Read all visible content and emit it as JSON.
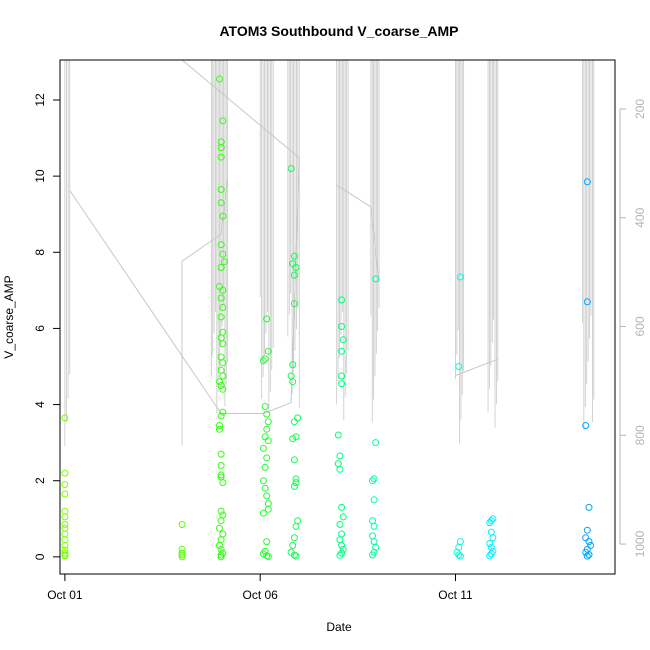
{
  "chart_data": {
    "type": "scatter",
    "title": "ATOM3 Southbound V_coarse_AMP",
    "xlabel": "Date",
    "ylabel": "V_coarse_AMP",
    "xlim": [
      "2023-09-30T21:00",
      "2023-10-15T02:00"
    ],
    "ylim": [
      -0.45,
      13.05
    ],
    "x_ticks": [
      {
        "x": "2023-10-01T00:00",
        "label": "Oct 01"
      },
      {
        "x": "2023-10-06T00:00",
        "label": "Oct 06"
      },
      {
        "x": "2023-10-11T00:00",
        "label": "Oct 11"
      }
    ],
    "y_ticks": [
      0,
      2,
      4,
      6,
      8,
      10,
      12
    ],
    "y2_ticks": [
      200,
      400,
      600,
      800,
      1000
    ],
    "y2lim": [
      1055,
      110
    ],
    "y2_color": "#b4b4b4",
    "grid": false,
    "legend": "none",
    "series": [
      {
        "color": "#7cff00",
        "points": [
          [
            "2023-10-01T00:00",
            3.65
          ],
          [
            "2023-10-01T00:00",
            2.2
          ],
          [
            "2023-10-01T00:00",
            1.9
          ],
          [
            "2023-10-01T00:00",
            1.65
          ],
          [
            "2023-10-01T00:00",
            1.2
          ],
          [
            "2023-10-01T00:00",
            1.05
          ],
          [
            "2023-10-01T00:00",
            0.85
          ],
          [
            "2023-10-01T00:00",
            0.75
          ],
          [
            "2023-10-01T00:00",
            0.6
          ],
          [
            "2023-10-01T00:00",
            0.45
          ],
          [
            "2023-10-01T00:00",
            0.3
          ],
          [
            "2023-10-01T00:00",
            0.18
          ],
          [
            "2023-10-01T00:00",
            0.1
          ],
          [
            "2023-10-01T00:00",
            0.05
          ],
          [
            "2023-10-01T00:00",
            0.02
          ]
        ]
      },
      {
        "color": "#5cff00",
        "points": [
          [
            "2023-10-04T00:00",
            0.85
          ],
          [
            "2023-10-04T00:00",
            0.2
          ],
          [
            "2023-10-04T00:00",
            0.1
          ],
          [
            "2023-10-04T00:00",
            0.05
          ],
          [
            "2023-10-04T00:00",
            0.0
          ]
        ]
      },
      {
        "color": "#33ff10",
        "points": [
          [
            "2023-10-04T23:00",
            12.55
          ],
          [
            "2023-10-05T01:00",
            11.45
          ],
          [
            "2023-10-05T00:00",
            10.9
          ],
          [
            "2023-10-05T00:00",
            10.75
          ],
          [
            "2023-10-05T00:00",
            10.5
          ],
          [
            "2023-10-05T00:00",
            9.65
          ],
          [
            "2023-10-05T00:00",
            9.3
          ],
          [
            "2023-10-05T01:00",
            8.95
          ],
          [
            "2023-10-05T00:00",
            8.2
          ],
          [
            "2023-10-05T01:00",
            7.95
          ],
          [
            "2023-10-05T02:00",
            7.75
          ],
          [
            "2023-10-05T00:00",
            7.6
          ],
          [
            "2023-10-04T23:00",
            7.1
          ],
          [
            "2023-10-05T01:00",
            7.0
          ],
          [
            "2023-10-05T00:00",
            6.8
          ],
          [
            "2023-10-05T01:00",
            6.55
          ],
          [
            "2023-10-05T00:00",
            6.3
          ],
          [
            "2023-10-05T01:00",
            5.9
          ],
          [
            "2023-10-05T00:00",
            5.75
          ],
          [
            "2023-10-05T01:00",
            5.6
          ],
          [
            "2023-10-05T00:00",
            5.25
          ],
          [
            "2023-10-05T01:00",
            5.1
          ],
          [
            "2023-10-05T00:00",
            4.9
          ],
          [
            "2023-10-05T01:00",
            4.75
          ],
          [
            "2023-10-04T23:00",
            4.6
          ],
          [
            "2023-10-05T00:00",
            4.5
          ],
          [
            "2023-10-05T01:00",
            4.4
          ],
          [
            "2023-10-05T01:00",
            3.8
          ],
          [
            "2023-10-05T00:00",
            3.7
          ],
          [
            "2023-10-04T23:00",
            3.45
          ],
          [
            "2023-10-04T23:00",
            3.35
          ],
          [
            "2023-10-05T00:00",
            2.7
          ],
          [
            "2023-10-05T00:00",
            2.4
          ],
          [
            "2023-10-05T00:00",
            2.15
          ],
          [
            "2023-10-05T00:00",
            2.1
          ],
          [
            "2023-10-05T01:00",
            1.95
          ],
          [
            "2023-10-05T00:00",
            1.2
          ],
          [
            "2023-10-05T01:00",
            1.1
          ],
          [
            "2023-10-05T00:00",
            0.95
          ],
          [
            "2023-10-04T23:00",
            0.75
          ],
          [
            "2023-10-05T01:00",
            0.6
          ],
          [
            "2023-10-05T00:00",
            0.45
          ],
          [
            "2023-10-04T23:00",
            0.3
          ],
          [
            "2023-10-05T00:00",
            0.2
          ],
          [
            "2023-10-05T01:00",
            0.1
          ],
          [
            "2023-10-05T00:00",
            0.05
          ],
          [
            "2023-10-05T00:00",
            0.0
          ]
        ]
      },
      {
        "color": "#22ff30",
        "points": [
          [
            "2023-10-06T04:00",
            6.25
          ],
          [
            "2023-10-06T05:00",
            5.4
          ],
          [
            "2023-10-06T03:00",
            5.2
          ],
          [
            "2023-10-06T02:00",
            5.15
          ],
          [
            "2023-10-06T03:00",
            3.95
          ],
          [
            "2023-10-06T04:00",
            3.75
          ],
          [
            "2023-10-06T05:00",
            3.55
          ],
          [
            "2023-10-06T04:00",
            3.35
          ],
          [
            "2023-10-06T03:00",
            3.15
          ],
          [
            "2023-10-06T05:00",
            3.05
          ],
          [
            "2023-10-06T02:00",
            2.85
          ],
          [
            "2023-10-06T04:00",
            2.6
          ],
          [
            "2023-10-06T03:00",
            2.35
          ],
          [
            "2023-10-06T02:00",
            2.0
          ],
          [
            "2023-10-06T03:00",
            1.8
          ],
          [
            "2023-10-06T04:00",
            1.6
          ],
          [
            "2023-10-06T05:00",
            1.4
          ],
          [
            "2023-10-06T05:00",
            1.25
          ],
          [
            "2023-10-06T02:00",
            1.15
          ],
          [
            "2023-10-06T04:00",
            0.4
          ],
          [
            "2023-10-06T03:00",
            0.15
          ],
          [
            "2023-10-06T02:00",
            0.08
          ],
          [
            "2023-10-06T04:00",
            0.03
          ],
          [
            "2023-10-06T05:00",
            0.01
          ]
        ]
      },
      {
        "color": "#10ff50",
        "points": [
          [
            "2023-10-06T19:00",
            10.2
          ],
          [
            "2023-10-06T21:00",
            7.9
          ],
          [
            "2023-10-06T20:00",
            7.7
          ],
          [
            "2023-10-06T22:00",
            7.6
          ],
          [
            "2023-10-06T21:00",
            7.4
          ],
          [
            "2023-10-06T21:00",
            6.65
          ],
          [
            "2023-10-06T20:00",
            5.05
          ],
          [
            "2023-10-06T19:00",
            4.75
          ],
          [
            "2023-10-06T20:00",
            4.6
          ],
          [
            "2023-10-06T23:00",
            3.65
          ],
          [
            "2023-10-06T21:00",
            3.55
          ],
          [
            "2023-10-06T22:00",
            3.15
          ],
          [
            "2023-10-06T20:00",
            3.1
          ],
          [
            "2023-10-06T21:00",
            2.55
          ],
          [
            "2023-10-06T22:00",
            2.05
          ],
          [
            "2023-10-06T22:00",
            1.95
          ],
          [
            "2023-10-06T21:00",
            1.85
          ],
          [
            "2023-10-06T23:00",
            0.95
          ],
          [
            "2023-10-06T22:00",
            0.8
          ],
          [
            "2023-10-06T21:00",
            0.5
          ],
          [
            "2023-10-06T20:00",
            0.3
          ],
          [
            "2023-10-06T19:00",
            0.12
          ],
          [
            "2023-10-06T21:00",
            0.05
          ],
          [
            "2023-10-06T22:00",
            0.02
          ]
        ]
      },
      {
        "color": "#00ff80",
        "points": [
          [
            "2023-10-08T02:00",
            6.75
          ],
          [
            "2023-10-08T02:00",
            6.05
          ],
          [
            "2023-10-08T03:00",
            5.7
          ],
          [
            "2023-10-08T02:00",
            5.4
          ],
          [
            "2023-10-08T02:00",
            4.75
          ],
          [
            "2023-10-08T02:00",
            4.55
          ],
          [
            "2023-10-08T00:00",
            3.2
          ],
          [
            "2023-10-08T01:00",
            2.65
          ],
          [
            "2023-10-08T00:00",
            2.45
          ],
          [
            "2023-10-08T01:00",
            2.3
          ],
          [
            "2023-10-08T02:00",
            1.3
          ],
          [
            "2023-10-08T03:00",
            1.05
          ],
          [
            "2023-10-08T01:00",
            0.85
          ],
          [
            "2023-10-08T02:00",
            0.6
          ],
          [
            "2023-10-08T01:00",
            0.45
          ],
          [
            "2023-10-08T02:00",
            0.3
          ],
          [
            "2023-10-08T03:00",
            0.2
          ],
          [
            "2023-10-08T02:00",
            0.1
          ],
          [
            "2023-10-08T01:00",
            0.04
          ]
        ]
      },
      {
        "color": "#00ffa0",
        "points": [
          [
            "2023-10-08T23:00",
            7.3
          ],
          [
            "2023-10-08T23:00",
            3.0
          ],
          [
            "2023-10-08T22:00",
            2.05
          ],
          [
            "2023-10-08T21:00",
            2.0
          ],
          [
            "2023-10-08T22:00",
            1.5
          ],
          [
            "2023-10-08T21:00",
            0.95
          ],
          [
            "2023-10-08T22:00",
            0.8
          ],
          [
            "2023-10-08T21:00",
            0.55
          ],
          [
            "2023-10-08T22:00",
            0.4
          ],
          [
            "2023-10-08T23:00",
            0.25
          ],
          [
            "2023-10-08T22:00",
            0.12
          ],
          [
            "2023-10-08T21:00",
            0.05
          ]
        ]
      },
      {
        "color": "#00ffdf",
        "points": [
          [
            "2023-10-11T03:00",
            7.35
          ],
          [
            "2023-10-11T02:00",
            5.0
          ],
          [
            "2023-10-11T03:00",
            0.4
          ],
          [
            "2023-10-11T02:00",
            0.25
          ],
          [
            "2023-10-11T01:00",
            0.12
          ],
          [
            "2023-10-11T02:00",
            0.05
          ],
          [
            "2023-10-11T03:00",
            0.02
          ]
        ]
      },
      {
        "color": "#00f0ff",
        "points": [
          [
            "2023-10-11T23:00",
            1.0
          ],
          [
            "2023-10-11T22:00",
            0.95
          ],
          [
            "2023-10-11T21:00",
            0.9
          ],
          [
            "2023-10-11T22:00",
            0.65
          ],
          [
            "2023-10-11T23:00",
            0.5
          ],
          [
            "2023-10-11T21:00",
            0.35
          ],
          [
            "2023-10-11T22:00",
            0.25
          ],
          [
            "2023-10-11T23:00",
            0.15
          ],
          [
            "2023-10-11T22:00",
            0.08
          ],
          [
            "2023-10-11T21:00",
            0.03
          ]
        ]
      },
      {
        "color": "#00a5ff",
        "points": [
          [
            "2023-10-14T09:00",
            9.85
          ],
          [
            "2023-10-14T09:00",
            6.7
          ],
          [
            "2023-10-14T08:00",
            3.45
          ],
          [
            "2023-10-14T10:00",
            1.3
          ],
          [
            "2023-10-14T09:00",
            0.7
          ],
          [
            "2023-10-14T08:00",
            0.5
          ],
          [
            "2023-10-14T10:00",
            0.4
          ],
          [
            "2023-10-14T11:00",
            0.3
          ],
          [
            "2023-10-14T09:00",
            0.2
          ],
          [
            "2023-10-14T08:00",
            0.12
          ],
          [
            "2023-10-14T10:00",
            0.06
          ],
          [
            "2023-10-14T09:00",
            0.02
          ]
        ]
      }
    ],
    "y2_series": {
      "color": "#c8c8c8",
      "clusters": [
        {
          "x0": "2023-10-01T00:00",
          "x1": "2023-10-01T03:00",
          "top": 110,
          "bottom": 820
        },
        {
          "x0": "2023-10-04T00:00",
          "x1": "2023-10-04T00:00",
          "top": 480,
          "bottom": 820
        },
        {
          "x0": "2023-10-04T18:00",
          "x1": "2023-10-05T04:00",
          "top": 110,
          "bottom": 760
        },
        {
          "x0": "2023-10-06T00:00",
          "x1": "2023-10-06T08:00",
          "top": 110,
          "bottom": 760
        },
        {
          "x0": "2023-10-06T17:00",
          "x1": "2023-10-07T00:00",
          "top": 110,
          "bottom": 750
        },
        {
          "x0": "2023-10-07T23:00",
          "x1": "2023-10-08T06:00",
          "top": 110,
          "bottom": 800
        },
        {
          "x0": "2023-10-08T20:00",
          "x1": "2023-10-09T01:00",
          "top": 110,
          "bottom": 790
        },
        {
          "x0": "2023-10-11T00:00",
          "x1": "2023-10-11T05:00",
          "top": 110,
          "bottom": 830
        },
        {
          "x0": "2023-10-11T20:00",
          "x1": "2023-10-12T02:00",
          "top": 110,
          "bottom": 800
        },
        {
          "x0": "2023-10-14T06:00",
          "x1": "2023-10-14T13:00",
          "top": 110,
          "bottom": 790
        }
      ],
      "connector": [
        [
          "2023-10-01T03:00",
          350
        ],
        [
          "2023-10-05T00:00",
          760
        ],
        [
          "2023-10-06T02:00",
          760
        ],
        [
          "2023-10-06T19:00",
          740
        ],
        [
          "2023-10-07T00:00",
          290
        ],
        [
          "2023-10-04T00:00",
          110
        ]
      ],
      "connector2": [
        [
          "2023-10-04T00:00",
          480
        ],
        [
          "2023-10-05T00:00",
          430
        ],
        [
          "2023-10-05T04:00",
          330
        ]
      ],
      "connector3": [
        [
          "2023-10-07T23:00",
          340
        ],
        [
          "2023-10-08T20:00",
          380
        ],
        [
          "2023-10-09T01:00",
          520
        ]
      ],
      "connector4": [
        [
          "2023-10-11T00:00",
          690
        ],
        [
          "2023-10-12T02:00",
          660
        ]
      ]
    }
  }
}
